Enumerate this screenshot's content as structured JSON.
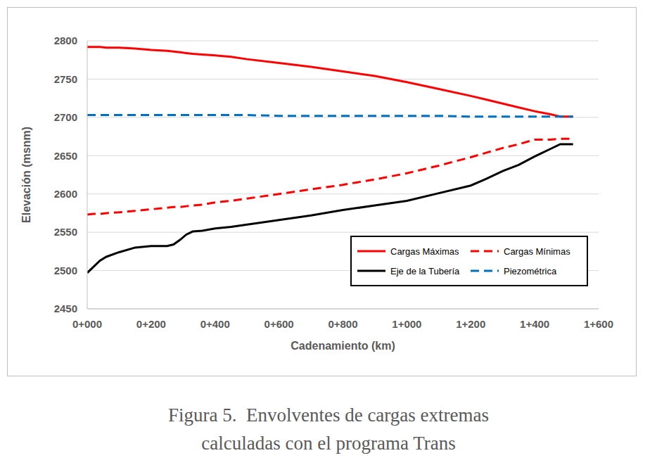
{
  "chart_data": {
    "type": "line",
    "caption": [
      "Figura 5.  Envolventes de cargas extremas",
      "calculadas con el programa Trans"
    ],
    "x_label": "Cadenamiento (km)",
    "y_label": "Elevación (msnm)",
    "x": [
      0,
      20,
      40,
      60,
      100,
      150,
      200,
      250,
      270,
      290,
      310,
      330,
      360,
      400,
      450,
      500,
      600,
      700,
      800,
      900,
      1000,
      1100,
      1200,
      1250,
      1300,
      1350,
      1400,
      1450,
      1480,
      1520
    ],
    "series": [
      {
        "name": "Cargas Máximas",
        "color": "#ff0000",
        "line_style": "solid",
        "values": [
          2792,
          2792,
          2792,
          2791,
          2791,
          2790,
          2788,
          2787,
          2786,
          2785,
          2784,
          2783,
          2782,
          2781,
          2779,
          2776,
          2771,
          2766,
          2760,
          2754,
          2746,
          2737,
          2728,
          2723,
          2718,
          2713,
          2708,
          2704,
          2701,
          2701
        ]
      },
      {
        "name": "Cargas Mínimas",
        "color": "#ff0000",
        "line_style": "dashed",
        "values": [
          2573,
          2574,
          2574,
          2575,
          2576,
          2578,
          2580,
          2582,
          2583,
          2583,
          2584,
          2585,
          2586,
          2589,
          2591,
          2594,
          2600,
          2606,
          2612,
          2619,
          2627,
          2637,
          2648,
          2654,
          2660,
          2665,
          2671,
          2671,
          2672,
          2672
        ]
      },
      {
        "name": "Eje de la Tubería",
        "color": "#000000",
        "line_style": "solid",
        "values": [
          2497,
          2505,
          2513,
          2518,
          2524,
          2530,
          2532,
          2532,
          2534,
          2540,
          2547,
          2551,
          2552,
          2555,
          2557,
          2560,
          2566,
          2572,
          2579,
          2585,
          2591,
          2601,
          2611,
          2620,
          2630,
          2638,
          2649,
          2659,
          2665,
          2665
        ]
      },
      {
        "name": "Piezométrica",
        "color": "#0070c0",
        "line_style": "dashed",
        "values": [
          2703,
          2703,
          2703,
          2703,
          2703,
          2703,
          2703,
          2703,
          2703,
          2703,
          2703,
          2703,
          2703,
          2703,
          2703,
          2703,
          2702,
          2702,
          2702,
          2702,
          2702,
          2702,
          2701,
          2701,
          2701,
          2701,
          2701,
          2701,
          2701,
          2701
        ]
      }
    ],
    "xlim": [
      0,
      1600
    ],
    "xticks": [
      {
        "value": 0,
        "label": "0+000"
      },
      {
        "value": 200,
        "label": "0+200"
      },
      {
        "value": 400,
        "label": "0+400"
      },
      {
        "value": 600,
        "label": "0+600"
      },
      {
        "value": 800,
        "label": "0+800"
      },
      {
        "value": 1000,
        "label": "1+000"
      },
      {
        "value": 1200,
        "label": "1+200"
      },
      {
        "value": 1400,
        "label": "1+400"
      },
      {
        "value": 1600,
        "label": "1+600"
      }
    ],
    "ylim": [
      2450,
      2800
    ],
    "yticks": [
      2450,
      2500,
      2550,
      2600,
      2650,
      2700,
      2750,
      2800
    ],
    "grid": true,
    "legend": "lower right"
  }
}
